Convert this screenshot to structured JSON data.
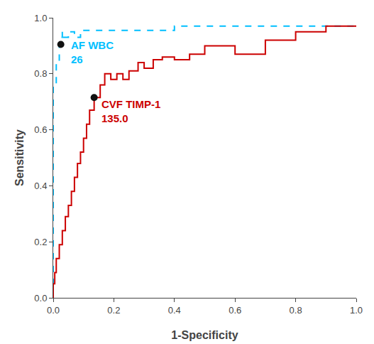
{
  "chart_data": {
    "type": "line",
    "xlabel": "1-Specificity",
    "ylabel": "Sensitivity",
    "xlim": [
      0.0,
      1.0
    ],
    "ylim": [
      0.0,
      1.0
    ],
    "xticks": [
      {
        "value": 0.0,
        "label": "0.0"
      },
      0.2,
      0.4,
      0.6,
      0.8,
      {
        "value": 1.0,
        "label": "1.0"
      }
    ],
    "yticks": [
      {
        "value": 0.0,
        "label": "0.0"
      },
      0.2,
      0.4,
      0.6,
      0.8,
      {
        "value": 1.0,
        "label": "1.0"
      }
    ],
    "grid": false,
    "series": [
      {
        "type": "line",
        "color": "#00BFFF",
        "line_style": "dashed",
        "x": [
          0.0,
          0.0,
          0.01,
          0.01,
          0.02,
          0.02,
          0.025,
          0.025,
          0.03,
          0.03,
          0.035,
          0.035,
          0.05,
          0.05,
          0.07,
          0.07,
          0.09,
          0.09,
          0.35,
          0.35,
          0.4,
          0.4,
          1.0
        ],
        "values": [
          0.0,
          0.76,
          0.76,
          0.84,
          0.84,
          0.905,
          0.905,
          0.93,
          0.93,
          0.95,
          0.95,
          0.93,
          0.93,
          0.95,
          0.95,
          0.93,
          0.93,
          0.955,
          0.955,
          0.955,
          0.955,
          0.97,
          0.97
        ]
      },
      {
        "type": "line",
        "color": "#CC0000",
        "line_style": "solid",
        "x": [
          0.0,
          0.0,
          0.005,
          0.005,
          0.01,
          0.01,
          0.02,
          0.02,
          0.03,
          0.03,
          0.04,
          0.04,
          0.05,
          0.05,
          0.06,
          0.06,
          0.07,
          0.07,
          0.08,
          0.08,
          0.09,
          0.09,
          0.1,
          0.1,
          0.11,
          0.11,
          0.12,
          0.12,
          0.135,
          0.135,
          0.155,
          0.155,
          0.17,
          0.17,
          0.19,
          0.19,
          0.21,
          0.21,
          0.23,
          0.23,
          0.25,
          0.25,
          0.28,
          0.28,
          0.3,
          0.3,
          0.33,
          0.33,
          0.36,
          0.36,
          0.4,
          0.4,
          0.45,
          0.45,
          0.5,
          0.5,
          0.6,
          0.6,
          0.7,
          0.7,
          0.8,
          0.8,
          0.9,
          0.9,
          1.0
        ],
        "values": [
          0.0,
          0.05,
          0.05,
          0.09,
          0.09,
          0.14,
          0.14,
          0.19,
          0.19,
          0.24,
          0.24,
          0.29,
          0.29,
          0.33,
          0.33,
          0.38,
          0.38,
          0.43,
          0.43,
          0.48,
          0.48,
          0.52,
          0.52,
          0.57,
          0.57,
          0.62,
          0.62,
          0.67,
          0.67,
          0.715,
          0.715,
          0.76,
          0.76,
          0.8,
          0.8,
          0.78,
          0.78,
          0.8,
          0.8,
          0.78,
          0.78,
          0.81,
          0.81,
          0.84,
          0.84,
          0.82,
          0.82,
          0.85,
          0.85,
          0.86,
          0.86,
          0.85,
          0.85,
          0.87,
          0.87,
          0.9,
          0.9,
          0.87,
          0.87,
          0.92,
          0.92,
          0.95,
          0.95,
          0.97,
          0.97
        ]
      },
      {
        "type": "scatter",
        "color": "#111111",
        "marker": "circle",
        "x": [
          0.025
        ],
        "values": [
          0.905
        ]
      },
      {
        "type": "scatter",
        "color": "#111111",
        "marker": "circle",
        "x": [
          0.135
        ],
        "values": [
          0.715
        ]
      }
    ],
    "annotations": [
      {
        "text": "AF WBC",
        "x": 0.055,
        "y": 0.875,
        "color": "#00BFFF"
      },
      {
        "text": "26",
        "x": 0.055,
        "y": 0.825,
        "color": "#00BFFF"
      },
      {
        "text": "CVF TIMP-1",
        "x": 0.155,
        "y": 0.665,
        "color": "#CC0000"
      },
      {
        "text": "135.0",
        "x": 0.155,
        "y": 0.615,
        "color": "#CC0000"
      }
    ]
  }
}
